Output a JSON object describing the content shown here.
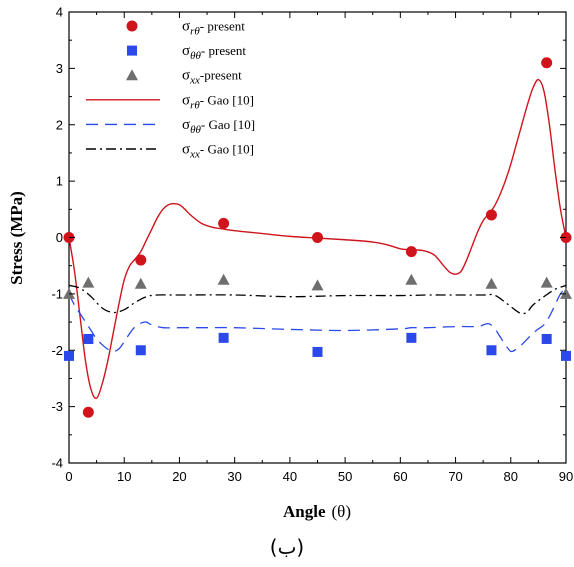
{
  "chart_data": {
    "type": "scatter",
    "title": "",
    "xlabel": "Angle",
    "xlabel_symbol": "(θ)",
    "ylabel": "Stress  (MPa)",
    "xlim": [
      0,
      90
    ],
    "ylim": [
      -4,
      4
    ],
    "xticks": [
      "0",
      "10",
      "20",
      "30",
      "40",
      "50",
      "60",
      "70",
      "80",
      "90"
    ],
    "yticks": [
      "-4",
      "-3",
      "-2",
      "-1",
      "0",
      "1",
      "2",
      "3",
      "4"
    ],
    "grid": false,
    "legend_position": "top-left",
    "series": [
      {
        "symbol": "σ",
        "sub": "rθ",
        "suffix": "- present",
        "style": "marker",
        "marker": "circle",
        "color": "#d0141c",
        "x": [
          0,
          3.5,
          13,
          28,
          45,
          62,
          76.5,
          86.5,
          90
        ],
        "y": [
          0,
          -3.1,
          -0.4,
          0.25,
          0,
          -0.25,
          0.4,
          3.1,
          0
        ]
      },
      {
        "symbol": "σ",
        "sub": "θθ",
        "suffix": "- present",
        "style": "marker",
        "marker": "square",
        "color": "#2b48e8",
        "x": [
          0,
          3.5,
          13,
          28,
          45,
          62,
          76.5,
          86.5,
          90
        ],
        "y": [
          -2.1,
          -1.8,
          -2.0,
          -1.78,
          -2.03,
          -1.78,
          -2.0,
          -1.8,
          -2.1
        ]
      },
      {
        "symbol": "σ",
        "sub": "xx",
        "suffix": "-present",
        "style": "marker",
        "marker": "triangle",
        "color": "#6e6e6e",
        "x": [
          0,
          3.5,
          13,
          28,
          45,
          62,
          76.5,
          86.5,
          90
        ],
        "y": [
          -1.0,
          -0.8,
          -0.82,
          -0.75,
          -0.85,
          -0.75,
          -0.82,
          -0.8,
          -1.0
        ]
      },
      {
        "symbol": "σ",
        "sub": "rθ",
        "suffix": "- Gao [10]",
        "style": "solid",
        "color": "#d0141c",
        "x": [
          0,
          1,
          2,
          3,
          4,
          5,
          6,
          7,
          8,
          9,
          10,
          11,
          12,
          13,
          14,
          15,
          16,
          17,
          18,
          19,
          20,
          21,
          22,
          24,
          26,
          28,
          30,
          35,
          40,
          45,
          50,
          55,
          58,
          60,
          62,
          64,
          66,
          67,
          68,
          69,
          70,
          71,
          72,
          73,
          74,
          75,
          76,
          77,
          78,
          79,
          80,
          81,
          82,
          83,
          84,
          85,
          86,
          87,
          88,
          89,
          90
        ],
        "y": [
          0,
          -0.6,
          -1.4,
          -2.2,
          -2.7,
          -2.85,
          -2.6,
          -2.2,
          -1.7,
          -1.2,
          -0.75,
          -0.5,
          -0.38,
          -0.25,
          -0.05,
          0.15,
          0.35,
          0.5,
          0.58,
          0.6,
          0.58,
          0.5,
          0.4,
          0.25,
          0.18,
          0.15,
          0.12,
          0.07,
          0.02,
          -0.01,
          -0.04,
          -0.08,
          -0.14,
          -0.2,
          -0.22,
          -0.23,
          -0.3,
          -0.4,
          -0.52,
          -0.62,
          -0.65,
          -0.6,
          -0.4,
          -0.15,
          0.1,
          0.3,
          0.42,
          0.55,
          0.75,
          1.0,
          1.3,
          1.65,
          2.0,
          2.35,
          2.65,
          2.8,
          2.6,
          2.0,
          1.2,
          0.5,
          0
        ]
      },
      {
        "symbol": "σ",
        "sub": "θθ",
        "suffix": "- Gao [10]",
        "style": "dashed",
        "color": "#2b48e8",
        "x": [
          0,
          1,
          2,
          3,
          4,
          5,
          6,
          7,
          8,
          9,
          10,
          11,
          12,
          13,
          14,
          15,
          17,
          20,
          25,
          30,
          40,
          50,
          60,
          62,
          65,
          70,
          74,
          75,
          76,
          77,
          78,
          79,
          80,
          81,
          82,
          83,
          84,
          85,
          86,
          87,
          88,
          89,
          90
        ],
        "y": [
          -1.0,
          -1.2,
          -1.35,
          -1.5,
          -1.65,
          -1.8,
          -1.9,
          -1.98,
          -2.02,
          -1.98,
          -1.85,
          -1.7,
          -1.58,
          -1.52,
          -1.5,
          -1.55,
          -1.6,
          -1.6,
          -1.6,
          -1.6,
          -1.63,
          -1.65,
          -1.62,
          -1.6,
          -1.6,
          -1.58,
          -1.58,
          -1.55,
          -1.53,
          -1.6,
          -1.75,
          -1.9,
          -2.02,
          -1.98,
          -1.9,
          -1.8,
          -1.7,
          -1.62,
          -1.55,
          -1.4,
          -1.2,
          -1.0,
          -0.9
        ]
      },
      {
        "symbol": "σ",
        "sub": "xx",
        "suffix": "- Gao [10]",
        "style": "dashdot",
        "color": "#000000",
        "x": [
          0,
          2,
          4,
          6,
          8,
          10,
          12,
          14,
          16,
          20,
          30,
          40,
          50,
          60,
          65,
          70,
          75,
          77,
          79,
          81,
          82,
          83,
          84,
          86,
          88,
          90
        ],
        "y": [
          -0.85,
          -0.9,
          -1.05,
          -1.25,
          -1.33,
          -1.28,
          -1.15,
          -1.05,
          -1.02,
          -1.02,
          -1.02,
          -1.05,
          -1.03,
          -1.03,
          -1.02,
          -1.02,
          -1.02,
          -1.02,
          -1.15,
          -1.3,
          -1.35,
          -1.32,
          -1.2,
          -1.05,
          -0.92,
          -0.85
        ]
      }
    ]
  },
  "caption": "(ب)"
}
